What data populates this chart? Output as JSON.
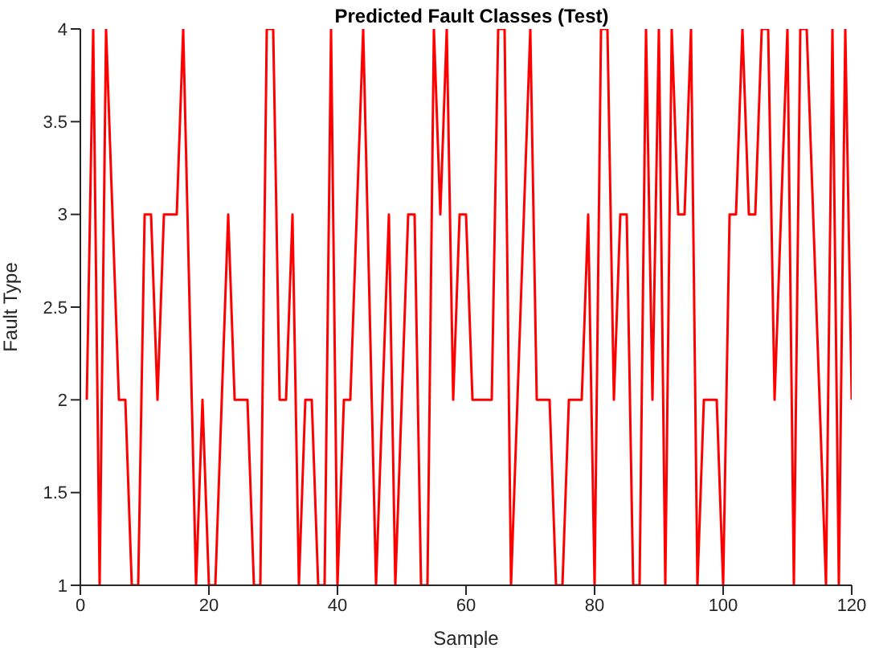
{
  "chart_data": {
    "type": "line",
    "title": "Predicted Fault Classes (Test)",
    "xlabel": "Sample",
    "ylabel": "Fault Type",
    "x": [
      1,
      2,
      3,
      4,
      6,
      7,
      8,
      9,
      10,
      11,
      12,
      13,
      15,
      16,
      18,
      19,
      20,
      21,
      23,
      24,
      26,
      27,
      28,
      29,
      30,
      31,
      32,
      33,
      34,
      35,
      36,
      37,
      38,
      39,
      40,
      41,
      42,
      44,
      46,
      48,
      49,
      51,
      52,
      53,
      54,
      55,
      56,
      57,
      58,
      59,
      60,
      61,
      64,
      65,
      66,
      67,
      70,
      71,
      73,
      74,
      75,
      76,
      78,
      79,
      80,
      81,
      82,
      83,
      84,
      85,
      86,
      87,
      88,
      89,
      90,
      91,
      92,
      93,
      94,
      95,
      96,
      97,
      99,
      100,
      101,
      102,
      103,
      104,
      105,
      106,
      107,
      108,
      110,
      111,
      112,
      113,
      116,
      117,
      118,
      119,
      120
    ],
    "series": [
      {
        "color": "#ff0000",
        "values": [
          2,
          4,
          1,
          4,
          2,
          2,
          1,
          1,
          3,
          3,
          2,
          3,
          3,
          4,
          1,
          2,
          1,
          1,
          3,
          2,
          2,
          1,
          1,
          4,
          4,
          2,
          2,
          3,
          1,
          2,
          2,
          1,
          1,
          4,
          1,
          2,
          2,
          4,
          1,
          3,
          1,
          3,
          3,
          1,
          1,
          4,
          3,
          4,
          2,
          3,
          3,
          2,
          2,
          4,
          4,
          1,
          4,
          2,
          2,
          1,
          1,
          2,
          2,
          3,
          1,
          4,
          4,
          2,
          3,
          3,
          1,
          1,
          4,
          2,
          4,
          1,
          4,
          3,
          3,
          4,
          1,
          2,
          2,
          1,
          3,
          3,
          4,
          3,
          3,
          4,
          4,
          2,
          4,
          1,
          4,
          4,
          1,
          4,
          1,
          4,
          2
        ]
      }
    ],
    "xlim": [
      0,
      120
    ],
    "xticks": [
      0,
      20,
      40,
      60,
      80,
      100,
      120
    ],
    "ylim": [
      1,
      4
    ],
    "yticks": [
      1,
      1.5,
      2,
      2.5,
      3,
      3.5,
      4
    ],
    "grid": false,
    "legend": false,
    "marker": "none",
    "line_style": "solid"
  }
}
